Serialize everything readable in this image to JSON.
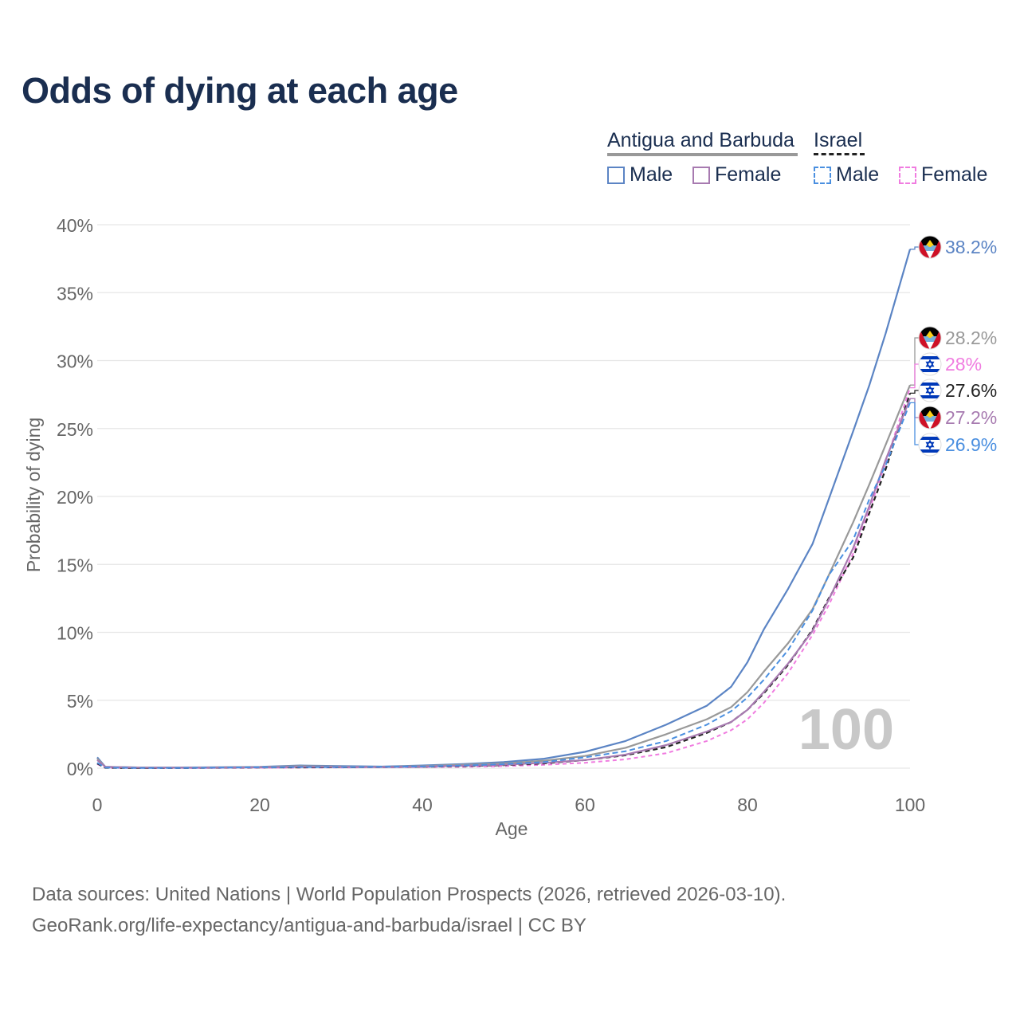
{
  "title": "Odds of dying at each age",
  "legend": {
    "country_a": "Antigua and Barbuda",
    "country_b": "Israel",
    "male": "Male",
    "female": "Female"
  },
  "footer": {
    "line1": "Data sources: United Nations | World Population Prospects (2026, retrieved 2026-03-10).",
    "line2": "GeoRank.org/life-expectancy/antigua-and-barbuda/israel | CC BY"
  },
  "colors": {
    "ag_male": "#5b84c4",
    "ag_female": "#a77ab0",
    "ag_total": "#999999",
    "il_male": "#4a8fe0",
    "il_female": "#f07ce0",
    "il_total": "#222222"
  },
  "chart_data": {
    "type": "line",
    "title": "Odds of dying at each age",
    "xlabel": "Age",
    "ylabel": "Probability of dying",
    "xlim": [
      0,
      100
    ],
    "ylim": [
      0,
      40
    ],
    "x_ticks": [
      "0",
      "20",
      "40",
      "60",
      "80",
      "100"
    ],
    "y_ticks": [
      "0%",
      "5%",
      "10%",
      "15%",
      "20%",
      "25%",
      "30%",
      "35%",
      "40%"
    ],
    "watermark": "100",
    "x": [
      0,
      1,
      5,
      10,
      15,
      20,
      25,
      30,
      35,
      40,
      45,
      50,
      55,
      60,
      65,
      70,
      75,
      78,
      80,
      82,
      85,
      88,
      90,
      93,
      95,
      97,
      100
    ],
    "series": [
      {
        "name": "Antigua and Barbuda Male",
        "key": "ag_male",
        "dash": "",
        "width": 2.2,
        "values": [
          0.8,
          0.1,
          0.05,
          0.05,
          0.07,
          0.1,
          0.2,
          0.15,
          0.12,
          0.2,
          0.3,
          0.45,
          0.7,
          1.2,
          2.0,
          3.2,
          4.6,
          6.0,
          7.8,
          10.2,
          13.2,
          16.5,
          19.8,
          24.8,
          28.2,
          32.0,
          38.2
        ],
        "end_label": "38.2%",
        "flag": "ag"
      },
      {
        "name": "Antigua and Barbuda Total",
        "key": "ag_total",
        "dash": "",
        "width": 2.2,
        "values": [
          0.7,
          0.1,
          0.05,
          0.04,
          0.06,
          0.08,
          0.15,
          0.12,
          0.1,
          0.15,
          0.25,
          0.35,
          0.55,
          0.9,
          1.5,
          2.5,
          3.6,
          4.5,
          5.6,
          7.1,
          9.2,
          11.7,
          14.2,
          18.1,
          20.9,
          23.8,
          28.2
        ],
        "end_label": "28.2%",
        "flag": "ag"
      },
      {
        "name": "Israel Female",
        "key": "il_female",
        "dash": "5,4",
        "width": 2.0,
        "values": [
          0.3,
          0.03,
          0.01,
          0.01,
          0.02,
          0.03,
          0.04,
          0.05,
          0.06,
          0.08,
          0.1,
          0.15,
          0.25,
          0.4,
          0.65,
          1.1,
          2.0,
          2.8,
          3.6,
          4.8,
          7.0,
          9.8,
          12.0,
          15.8,
          19.0,
          22.5,
          28.0
        ],
        "end_label": "28%",
        "flag": "il"
      },
      {
        "name": "Israel Total",
        "key": "il_total",
        "dash": "6,4",
        "width": 2.2,
        "values": [
          0.35,
          0.03,
          0.01,
          0.01,
          0.03,
          0.05,
          0.06,
          0.07,
          0.08,
          0.1,
          0.15,
          0.22,
          0.35,
          0.6,
          0.95,
          1.55,
          2.6,
          3.4,
          4.3,
          5.5,
          7.6,
          10.2,
          12.5,
          15.5,
          18.8,
          22.0,
          27.6
        ],
        "end_label": "27.6%",
        "flag": "il"
      },
      {
        "name": "Antigua and Barbuda Female",
        "key": "ag_female",
        "dash": "",
        "width": 2.2,
        "values": [
          0.6,
          0.1,
          0.04,
          0.03,
          0.04,
          0.06,
          0.1,
          0.09,
          0.08,
          0.12,
          0.18,
          0.25,
          0.4,
          0.6,
          1.0,
          1.7,
          2.7,
          3.4,
          4.3,
          5.6,
          7.7,
          10.1,
          12.4,
          16.2,
          19.3,
          22.7,
          27.2
        ],
        "end_label": "27.2%",
        "flag": "ag"
      },
      {
        "name": "Israel Male",
        "key": "il_male",
        "dash": "7,4",
        "width": 2.0,
        "values": [
          0.4,
          0.04,
          0.01,
          0.01,
          0.04,
          0.07,
          0.08,
          0.08,
          0.1,
          0.13,
          0.2,
          0.3,
          0.45,
          0.8,
          1.25,
          2.0,
          3.2,
          4.2,
          5.2,
          6.5,
          8.7,
          11.6,
          14.2,
          16.8,
          19.8,
          22.3,
          26.9
        ],
        "end_label": "26.9%",
        "flag": "il"
      }
    ]
  }
}
